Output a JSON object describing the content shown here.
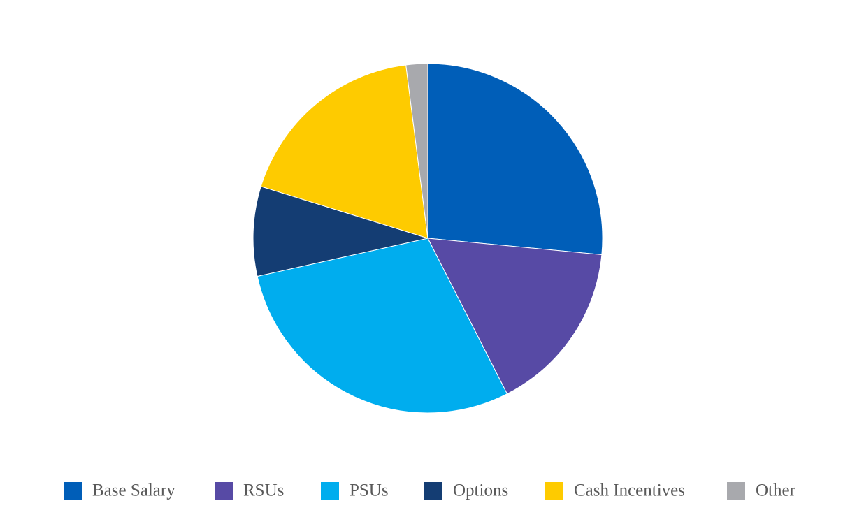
{
  "chart_data": {
    "type": "pie",
    "categories": [
      "Base Salary",
      "RSUs",
      "PSUs",
      "Options",
      "Cash Incentives",
      "Other"
    ],
    "values": [
      26.5,
      16,
      29,
      8.3,
      18.2,
      2
    ],
    "colors": [
      "#005eb8",
      "#574aa5",
      "#00adee",
      "#143d73",
      "#fecb00",
      "#a8a9ad"
    ],
    "legend": "bottom"
  }
}
